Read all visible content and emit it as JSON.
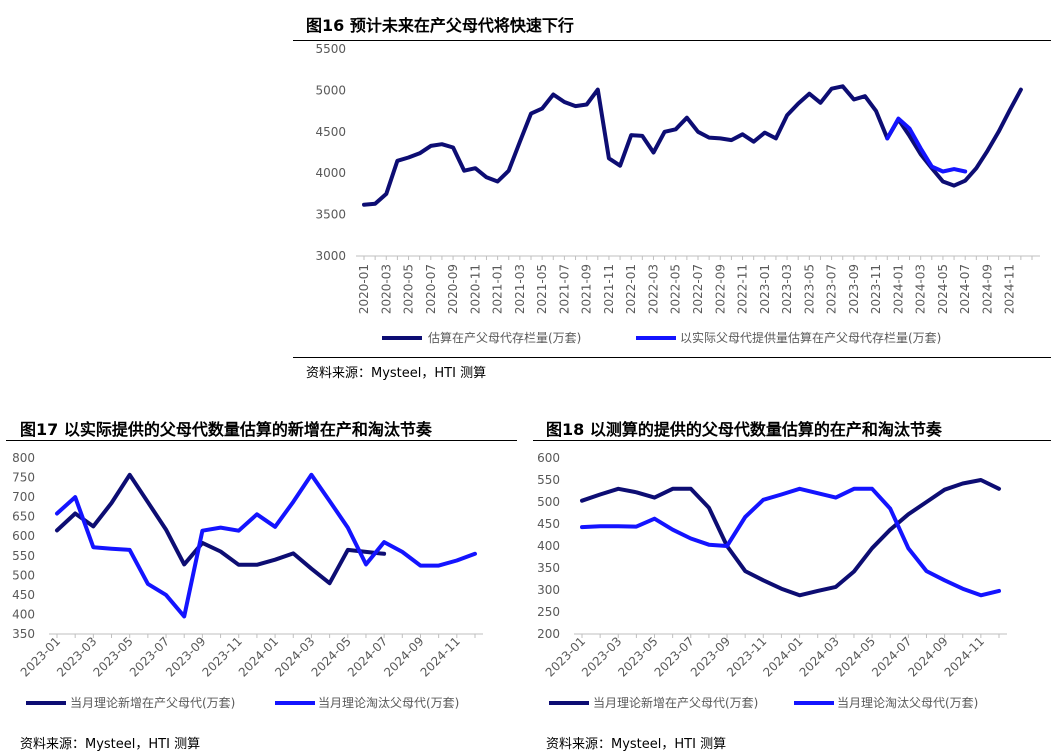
{
  "figures": [
    {
      "title": "图16 预计未来在产父母代将快速下行",
      "source": "资料来源：Mysteel，HTI 测算"
    },
    {
      "title": "图17 以实际提供的父母代数量估算的新增在产和淘汰节奏",
      "source": "资料来源：Mysteel，HTI 测算"
    },
    {
      "title": "图18 以测算的提供的父母代数量估算的在产和淘汰节奏",
      "source": "资料来源：Mysteel，HTI 测算"
    }
  ],
  "colors": {
    "dark_blue": "#0d0d73",
    "bright_blue": "#1414ff",
    "axis": "#d9d9d9",
    "tick_text": "#595959"
  },
  "chart_data": [
    {
      "id": "fig16",
      "type": "line",
      "title": "图16 预计未来在产父母代将快速下行",
      "xlabel": "",
      "ylabel": "",
      "ylim": [
        3000,
        5500
      ],
      "yticks": [
        3000,
        3500,
        4000,
        4500,
        5000,
        5500
      ],
      "x_start": "2020-01",
      "x_count": 61,
      "xtick_labels": [
        "2020-01",
        "2020-03",
        "2020-05",
        "2020-07",
        "2020-09",
        "2020-11",
        "2021-01",
        "2021-03",
        "2021-05",
        "2021-07",
        "2021-09",
        "2021-11",
        "2022-01",
        "2022-03",
        "2022-05",
        "2022-07",
        "2022-09",
        "2022-11",
        "2023-01",
        "2023-03",
        "2023-05",
        "2023-07",
        "2023-09",
        "2023-11",
        "2024-01",
        "2024-03",
        "2024-05",
        "2024-07",
        "2024-09",
        "2024-11"
      ],
      "grid": false,
      "legend_position": "bottom",
      "series": [
        {
          "name": "估算在产父母代存栏量(万套)",
          "color": "#0d0d73",
          "start_index": 0,
          "values": [
            3620,
            3630,
            3750,
            4150,
            4190,
            4240,
            4330,
            4350,
            4310,
            4030,
            4060,
            3950,
            3900,
            4030,
            4380,
            4720,
            4780,
            4950,
            4860,
            4810,
            4830,
            5010,
            4180,
            4090,
            4460,
            4450,
            4250,
            4500,
            4530,
            4670,
            4500,
            4430,
            4420,
            4400,
            4470,
            4380,
            4490,
            4420,
            4700,
            4840,
            4960,
            4850,
            5020,
            5050,
            4890,
            4930,
            4750,
            4420,
            4650,
            4450,
            4230,
            4060,
            3900,
            3850,
            3910,
            4060,
            4270,
            4500,
            4760,
            5010
          ]
        },
        {
          "name": "以实际父母代提供量估算在产父母代存栏量(万套)",
          "color": "#1414ff",
          "start_index": 47,
          "values": [
            4420,
            4660,
            4540,
            4300,
            4080,
            4020,
            4050,
            4020
          ]
        }
      ]
    },
    {
      "id": "fig17",
      "type": "line",
      "title": "图17 以实际提供的父母代数量估算的新增在产和淘汰节奏",
      "xlabel": "",
      "ylabel": "",
      "ylim": [
        350,
        800
      ],
      "yticks": [
        350,
        400,
        450,
        500,
        550,
        600,
        650,
        700,
        750,
        800
      ],
      "x_start": "2023-01",
      "x_count": 24,
      "xtick_labels": [
        "2023-01",
        "2023-03",
        "2023-05",
        "2023-07",
        "2023-09",
        "2023-11",
        "2024-01",
        "2024-03",
        "2024-05",
        "2024-07",
        "2024-09",
        "2024-11"
      ],
      "grid": false,
      "legend_position": "bottom",
      "series": [
        {
          "name": "当月理论新增在产父母代(万套)",
          "color": "#0d0d73",
          "start_index": 0,
          "values": [
            615,
            658,
            625,
            685,
            757,
            687,
            617,
            528,
            583,
            561,
            527,
            527,
            540,
            556,
            517,
            480,
            565,
            560,
            555
          ]
        },
        {
          "name": "当月理论淘汰父母代(万套)",
          "color": "#1414ff",
          "start_index": 0,
          "values": [
            658,
            700,
            572,
            568,
            565,
            478,
            450,
            395,
            614,
            622,
            614,
            656,
            624,
            688,
            757,
            690,
            622,
            528,
            585,
            560,
            525,
            525,
            538,
            555
          ]
        }
      ]
    },
    {
      "id": "fig18",
      "type": "line",
      "title": "图18 以测算的提供的父母代数量估算的在产和淘汰节奏",
      "xlabel": "",
      "ylabel": "",
      "ylim": [
        200,
        600
      ],
      "yticks": [
        200,
        250,
        300,
        350,
        400,
        450,
        500,
        550,
        600
      ],
      "x_start": "2023-01",
      "x_count": 24,
      "xtick_labels": [
        "2023-01",
        "2023-03",
        "2023-05",
        "2023-07",
        "2023-09",
        "2023-11",
        "2024-01",
        "2024-03",
        "2024-05",
        "2024-07",
        "2024-09",
        "2024-11"
      ],
      "grid": false,
      "legend_position": "bottom",
      "series": [
        {
          "name": "当月理论新增在产父母代(万套)",
          "color": "#0d0d73",
          "start_index": 0,
          "values": [
            503,
            517,
            530,
            522,
            510,
            530,
            530,
            487,
            400,
            343,
            322,
            303,
            288,
            298,
            307,
            342,
            395,
            437,
            472,
            500,
            528,
            542,
            550,
            530
          ]
        },
        {
          "name": "当月理论淘汰父母代(万套)",
          "color": "#1414ff",
          "start_index": 0,
          "values": [
            443,
            445,
            445,
            444,
            462,
            437,
            417,
            403,
            400,
            466,
            505,
            517,
            530,
            520,
            510,
            530,
            530,
            485,
            395,
            343,
            322,
            303,
            288,
            298
          ]
        }
      ]
    }
  ]
}
